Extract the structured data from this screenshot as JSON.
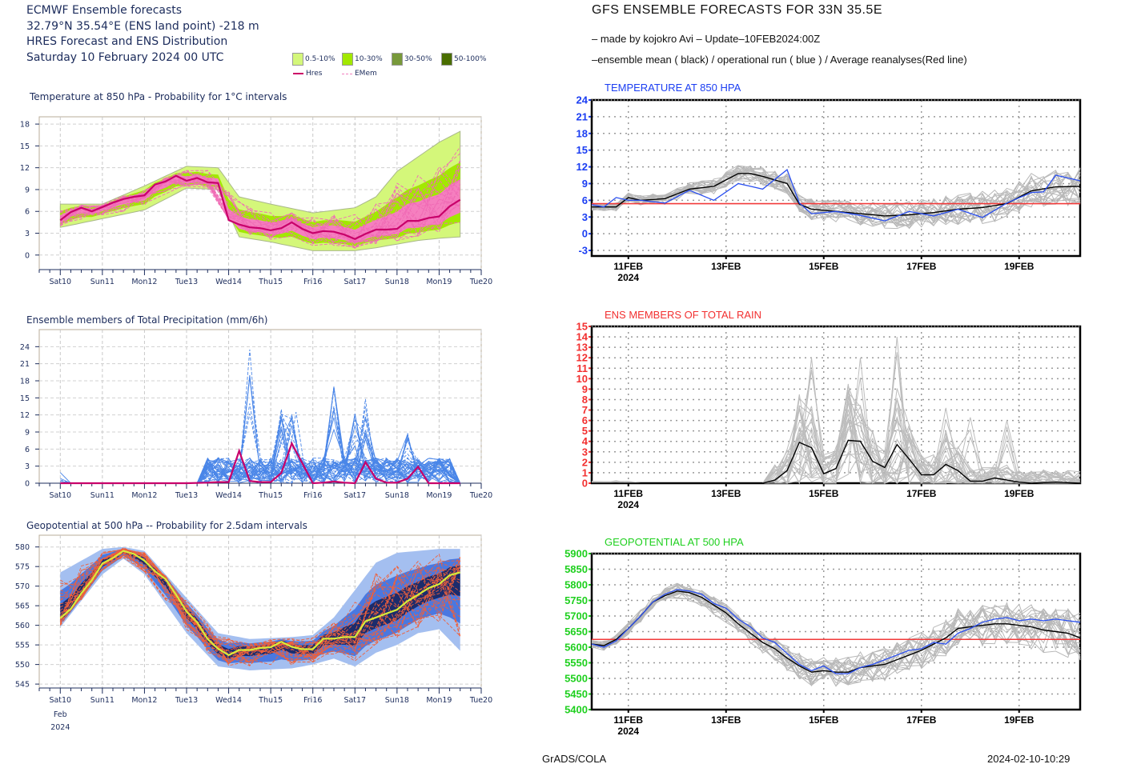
{
  "ecmwf": {
    "header": {
      "line1": "ECMWF Ensemble forecasts",
      "line2": " 32.79°N 35.54°E (ENS land point) -218 m",
      "line3": "HRES Forecast and ENS Distribution",
      "line4": "Saturday 10 February 2024 00 UTC"
    },
    "legend": {
      "bins": [
        {
          "label": "0.5-10%",
          "color": "#d4f77a"
        },
        {
          "label": "10-30%",
          "color": "#a2e800"
        },
        {
          "label": "30-50%",
          "color": "#78993a"
        },
        {
          "label": "50-100%",
          "color": "#4a6e00"
        }
      ],
      "hres_label": "Hres",
      "emem_label": "EMem",
      "hres_color": "#cc0066",
      "emem_color": "#f27fbf"
    },
    "date_axis": {
      "labels": [
        "Sat10",
        "Sun11",
        "Mon12",
        "Tue13",
        "Wed14",
        "Thu15",
        "Fri16",
        "Sat17",
        "Sun18",
        "Mon19",
        "Tue20"
      ],
      "weekend_labels": [
        "Sun11",
        "Sun18"
      ],
      "weekend_color": "#e8201e",
      "month_label": "Feb",
      "year_label": "2024"
    }
  },
  "gfs": {
    "title": "GFS ENSEMBLE FORECASTS FOR 33N 35.5E",
    "subtitle1": "– made by kojokro Avi – Update–10FEB2024:00Z",
    "subtitle2": "–ensemble mean ( black) / operational run ( blue )  / Average reanalyses(Red line)",
    "date_axis": {
      "labels": [
        "11FEB",
        "13FEB",
        "15FEB",
        "17FEB",
        "19FEB"
      ],
      "year_label": "2024"
    },
    "footer_left": "GrADS/COLA",
    "footer_right": "2024-02-10-10:29"
  },
  "chart_data": [
    {
      "id": "ecmwf-t850",
      "type": "area",
      "title": "Temperature at 850 hPa - Probability for 1°C intervals",
      "xlabel": "",
      "ylabel": "°C",
      "x_unit": "days since 10 Feb 2024 00 UTC",
      "xlim": [
        -0.5,
        10
      ],
      "ylim": [
        -2,
        19
      ],
      "yticks": [
        0,
        3,
        6,
        9,
        12,
        15,
        18
      ],
      "grid": true,
      "hres": {
        "x": [
          0,
          0.25,
          0.5,
          0.75,
          1,
          1.25,
          1.5,
          1.75,
          2,
          2.25,
          2.5,
          2.75,
          3,
          3.25,
          3.5,
          3.75,
          4,
          4.25,
          4.5,
          4.75,
          5,
          5.25,
          5.5,
          5.75,
          6,
          6.25,
          6.5,
          6.75,
          7,
          7.25,
          7.5,
          7.75,
          8,
          8.25,
          8.5,
          8.75,
          9,
          9.25,
          9.5
        ],
        "y": [
          4.8,
          5.9,
          6.5,
          6.0,
          6.6,
          7.2,
          7.7,
          8.0,
          8.2,
          9.7,
          10.1,
          10.9,
          10.2,
          10.6,
          10.0,
          9.9,
          4.8,
          4.2,
          3.8,
          3.7,
          3.4,
          3.7,
          4.5,
          3.6,
          3.0,
          3.3,
          3.2,
          2.8,
          2.2,
          2.9,
          3.5,
          3.5,
          3.6,
          4.7,
          4.7,
          5.1,
          5.3,
          6.7,
          7.6
        ]
      },
      "spread": {
        "x": [
          0,
          1,
          2,
          3,
          3.75,
          4.25,
          5,
          6,
          7,
          7.5,
          8,
          8.5,
          9,
          9.5
        ],
        "low": [
          3.8,
          5.0,
          6.2,
          9.2,
          9.0,
          2.5,
          1.8,
          0.6,
          0.6,
          1.0,
          1.5,
          2.0,
          2.3,
          2.5
        ],
        "high": [
          7.0,
          7.0,
          9.5,
          12.2,
          12.0,
          8.0,
          7.0,
          5.8,
          6.5,
          8.0,
          11.5,
          13.5,
          15.5,
          17.0
        ]
      }
    },
    {
      "id": "ecmwf-precip",
      "type": "line",
      "title": "Ensemble members of Total Precipitation (mm/6h)",
      "ylabel": "mm/6h",
      "xlim": [
        -0.5,
        10
      ],
      "ylim": [
        0,
        27
      ],
      "yticks": [
        0,
        3,
        6,
        9,
        12,
        15,
        18,
        21,
        24
      ],
      "grid": true,
      "hres": {
        "x": [
          0,
          0.5,
          1,
          1.5,
          2,
          2.5,
          3,
          3.5,
          3.75,
          4,
          4.25,
          4.5,
          4.75,
          5,
          5.25,
          5.5,
          6,
          6.25,
          6.5,
          6.75,
          7,
          7.25,
          7.5,
          7.75,
          8,
          8.25,
          8.5,
          8.75,
          9,
          9.5
        ],
        "y": [
          0,
          0,
          0,
          0,
          0,
          0,
          0,
          0.1,
          0.2,
          0.2,
          5.7,
          0.4,
          0.2,
          0.2,
          1.8,
          7.0,
          0,
          0.1,
          0.3,
          0.1,
          0,
          3.7,
          0.8,
          0.1,
          0.1,
          0.8,
          2.9,
          0,
          0,
          0
        ]
      },
      "member_peaks": [
        {
          "x": 4.5,
          "y": 23.5
        },
        {
          "x": 5.25,
          "y": 13.0
        },
        {
          "x": 5.6,
          "y": 12.5
        },
        {
          "x": 6.5,
          "y": 17.0
        },
        {
          "x": 7.25,
          "y": 14.8
        },
        {
          "x": 7.0,
          "y": 12.2
        },
        {
          "x": 8.25,
          "y": 8.8
        }
      ]
    },
    {
      "id": "ecmwf-z500",
      "type": "area",
      "title": "Geopotential at 500 hPa -- Probability for 2.5dam intervals",
      "ylabel": "dam",
      "xlim": [
        -0.5,
        10
      ],
      "ylim": [
        544,
        583
      ],
      "yticks": [
        545,
        550,
        555,
        560,
        565,
        570,
        575,
        580
      ],
      "grid": true,
      "hres": {
        "x": [
          0,
          0.25,
          0.5,
          0.75,
          1,
          1.25,
          1.5,
          1.75,
          2,
          2.25,
          2.5,
          2.75,
          3,
          3.25,
          3.5,
          3.75,
          4,
          4.25,
          4.5,
          4.75,
          5,
          5.25,
          5.5,
          5.75,
          6,
          6.25,
          6.5,
          6.75,
          7,
          7.25,
          7.5,
          7.75,
          8,
          8.25,
          8.5,
          8.75,
          9,
          9.25,
          9.5
        ],
        "y": [
          561.8,
          564.2,
          568.2,
          571.5,
          575.8,
          577.2,
          579.0,
          578.2,
          576.5,
          573.8,
          571.8,
          567.8,
          563.5,
          560.8,
          556.5,
          554.0,
          552.4,
          553.7,
          553.7,
          554.2,
          554.4,
          555.8,
          554.5,
          553.9,
          553.9,
          556.6,
          556.6,
          557.0,
          557.0,
          561.0,
          562.0,
          563.0,
          564.0,
          566.2,
          567.8,
          569.5,
          570.5,
          572.8,
          573.5
        ]
      },
      "spread": {
        "x": [
          0,
          1,
          1.5,
          2,
          3,
          3.75,
          4.5,
          5.5,
          6,
          6.5,
          7,
          7.5,
          8,
          8.5,
          9,
          9.5
        ],
        "low": [
          559.5,
          573.0,
          577.0,
          573.0,
          558.0,
          549.5,
          548.5,
          549.0,
          550.0,
          551.5,
          549.5,
          553.0,
          555.0,
          558.0,
          559.0,
          553.5
        ],
        "high": [
          573.5,
          579.5,
          580.0,
          579.0,
          567.0,
          558.0,
          556.5,
          557.0,
          557.5,
          562.0,
          569.0,
          576.0,
          578.5,
          579.0,
          579.5,
          579.5
        ]
      }
    },
    {
      "id": "gfs-t850",
      "type": "line",
      "title": "TEMPERATURE AT 850 HPA",
      "title_color": "#1b3ef2",
      "xlim": [
        0,
        10
      ],
      "ylim": [
        -4,
        24
      ],
      "yticks": [
        -3,
        0,
        3,
        6,
        9,
        12,
        15,
        18,
        21,
        24
      ],
      "grid": true,
      "reanalysis_avg": 5.4,
      "mean": {
        "x": [
          0,
          0.25,
          0.5,
          0.75,
          1,
          1.5,
          2,
          2.5,
          3,
          3.25,
          3.5,
          4,
          4.25,
          4.5,
          5,
          5.5,
          6,
          6.5,
          7,
          7.5,
          8,
          8.5,
          9,
          9.5,
          10
        ],
        "y": [
          4.8,
          4.8,
          4.8,
          6.5,
          6.0,
          6.3,
          8.0,
          8.5,
          10.8,
          10.8,
          10.3,
          9.0,
          5.3,
          4.4,
          4.0,
          3.6,
          3.2,
          3.4,
          3.8,
          4.4,
          4.7,
          5.4,
          7.7,
          8.4,
          8.5
        ]
      },
      "operational": {
        "x": [
          0,
          0.25,
          0.5,
          0.75,
          1,
          1.5,
          2,
          2.5,
          3,
          3.25,
          3.5,
          4,
          4.25,
          4.5,
          5,
          5.5,
          6,
          6.5,
          7,
          7.5,
          8,
          8.5,
          9,
          9.25,
          9.5,
          10
        ],
        "y": [
          5.2,
          4.8,
          6.5,
          6.0,
          6.0,
          5.5,
          7.8,
          6.0,
          9.0,
          8.5,
          8.0,
          11.5,
          5.5,
          3.6,
          4.0,
          3.3,
          2.3,
          4.0,
          3.2,
          4.4,
          2.9,
          5.5,
          7.4,
          7.5,
          10.5,
          9.5
        ]
      }
    },
    {
      "id": "gfs-rain",
      "type": "line",
      "title": "ENS MEMBERS OF TOTAL RAIN",
      "title_color": "#f23030",
      "xlim": [
        0,
        10
      ],
      "ylim": [
        0,
        15
      ],
      "yticks": [
        0,
        1,
        2,
        3,
        4,
        5,
        6,
        7,
        8,
        9,
        10,
        11,
        12,
        13,
        14,
        15
      ],
      "grid": true,
      "mean": {
        "x": [
          0,
          3.5,
          3.75,
          4,
          4.25,
          4.5,
          4.75,
          5,
          5.25,
          5.5,
          5.75,
          6,
          6.25,
          6.5,
          6.75,
          7,
          7.25,
          7.5,
          7.75,
          8,
          8.25,
          8.5,
          8.75,
          9,
          9.5,
          10
        ],
        "y": [
          0,
          0,
          0.3,
          1.2,
          3.9,
          3.4,
          0.9,
          1.4,
          4.1,
          4.0,
          2.1,
          1.5,
          3.7,
          2.3,
          0.8,
          0.8,
          1.8,
          1.2,
          0.2,
          0.2,
          0.5,
          0.3,
          0.1,
          0,
          0.1,
          0
        ]
      },
      "member_peaks": [
        {
          "x": 4.25,
          "y": 8.5
        },
        {
          "x": 4.5,
          "y": 12.0
        },
        {
          "x": 5.25,
          "y": 9.5
        },
        {
          "x": 5.5,
          "y": 12.0
        },
        {
          "x": 6.25,
          "y": 14.0
        },
        {
          "x": 7.25,
          "y": 7.2
        },
        {
          "x": 7.75,
          "y": 6.3
        },
        {
          "x": 8.5,
          "y": 6.0
        }
      ]
    },
    {
      "id": "gfs-z500",
      "type": "line",
      "title": "GEOPOTENTIAL AT 500 HPA",
      "title_color": "#1fd01f",
      "xlim": [
        0,
        10
      ],
      "ylim": [
        5400,
        5900
      ],
      "yticks": [
        5400,
        5450,
        5500,
        5550,
        5600,
        5650,
        5700,
        5750,
        5800,
        5850,
        5900
      ],
      "grid": true,
      "reanalysis_avg": 5625,
      "mean": {
        "x": [
          0,
          0.25,
          0.5,
          0.75,
          1,
          1.25,
          1.5,
          1.75,
          2,
          2.25,
          2.5,
          2.75,
          3,
          3.25,
          3.5,
          3.75,
          4,
          4.25,
          4.5,
          4.75,
          5,
          5.25,
          5.5,
          5.75,
          6,
          6.25,
          6.5,
          6.75,
          7,
          7.25,
          7.5,
          7.75,
          8,
          8.25,
          8.5,
          8.75,
          9,
          9.25,
          9.5,
          9.75,
          10
        ],
        "y": [
          5610,
          5605,
          5625,
          5660,
          5700,
          5745,
          5765,
          5780,
          5775,
          5760,
          5735,
          5710,
          5675,
          5645,
          5615,
          5595,
          5565,
          5540,
          5520,
          5525,
          5520,
          5520,
          5535,
          5540,
          5545,
          5560,
          5575,
          5590,
          5610,
          5630,
          5660,
          5665,
          5670,
          5675,
          5675,
          5670,
          5665,
          5655,
          5650,
          5645,
          5630
        ]
      },
      "operational": {
        "x": [
          0,
          0.25,
          0.5,
          0.75,
          1,
          1.25,
          1.5,
          1.75,
          2,
          2.25,
          2.5,
          2.75,
          3,
          3.25,
          3.5,
          3.75,
          4,
          4.25,
          4.5,
          4.75,
          5,
          5.25,
          5.5,
          5.75,
          6,
          6.25,
          6.5,
          6.75,
          7,
          7.25,
          7.5,
          7.75,
          8,
          8.25,
          8.5,
          8.75,
          9,
          9.25,
          9.5,
          9.75,
          10
        ],
        "y": [
          5610,
          5600,
          5620,
          5660,
          5700,
          5745,
          5770,
          5785,
          5780,
          5770,
          5740,
          5725,
          5690,
          5665,
          5630,
          5615,
          5580,
          5545,
          5525,
          5540,
          5515,
          5515,
          5535,
          5545,
          5560,
          5575,
          5590,
          5595,
          5615,
          5610,
          5645,
          5660,
          5680,
          5690,
          5695,
          5685,
          5690,
          5685,
          5690,
          5685,
          5680
        ]
      }
    }
  ]
}
